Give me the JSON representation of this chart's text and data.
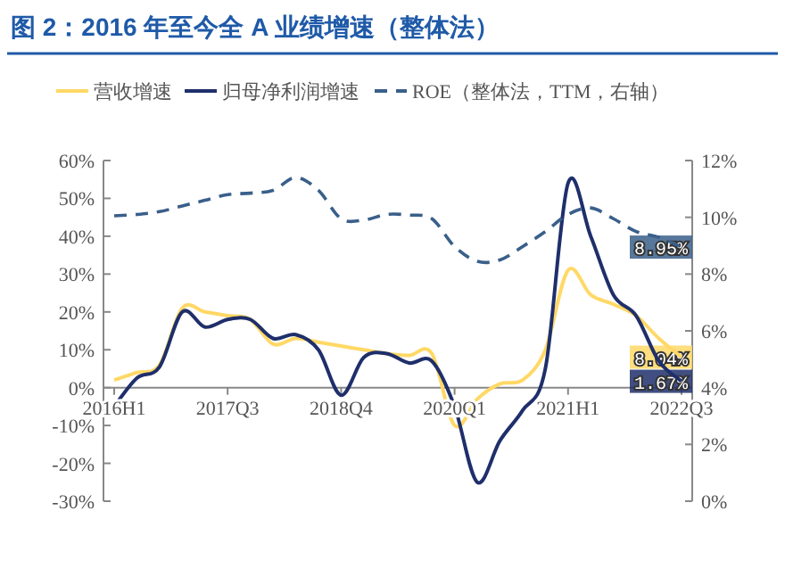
{
  "chart_data": {
    "type": "line",
    "title": "图 2：2016 年至今全 A 业绩增速（整体法）",
    "categories": [
      "2016H1",
      null,
      null,
      null,
      null,
      "2017Q3",
      null,
      null,
      null,
      null,
      "2018Q4",
      null,
      null,
      null,
      null,
      "2020Q1",
      null,
      null,
      null,
      null,
      "2021H1",
      null,
      null,
      null,
      null,
      "2022Q3"
    ],
    "series": [
      {
        "name": "营收增速",
        "color": "#ffd866",
        "values": [
          2,
          4,
          6,
          21,
          20,
          19,
          18,
          11.5,
          13,
          12,
          11,
          10,
          9,
          8.5,
          9,
          -10,
          -3,
          1,
          2,
          10,
          31,
          24.5,
          22,
          19,
          13,
          8.04
        ],
        "value_labels": [
          null,
          null,
          null,
          null,
          null,
          null,
          null,
          null,
          null,
          null,
          null,
          null,
          null,
          null,
          null,
          null,
          null,
          null,
          null,
          null,
          null,
          null,
          null,
          null,
          null,
          "8.04%"
        ]
      },
      {
        "name": "归母净利润增速",
        "color": "#1f2f6b",
        "values": [
          -5,
          2.5,
          5.5,
          20,
          16,
          18,
          18,
          13,
          14,
          10,
          -2,
          8,
          9,
          6.5,
          7,
          -5,
          -25,
          -14,
          -6,
          5,
          54,
          40,
          24.5,
          19,
          7,
          1.67
        ],
        "value_labels": [
          null,
          null,
          null,
          null,
          null,
          null,
          null,
          null,
          null,
          null,
          null,
          null,
          null,
          null,
          null,
          null,
          null,
          null,
          null,
          null,
          null,
          null,
          null,
          null,
          null,
          "1.67%"
        ]
      },
      {
        "name": "ROE（整体法，TTM，右轴）",
        "color": "#3a5f8a",
        "axis": "y2",
        "line_style": "dashed",
        "values": [
          10.05,
          10.1,
          10.2,
          10.4,
          10.6,
          10.8,
          10.85,
          10.95,
          11.4,
          10.95,
          9.95,
          9.9,
          10.1,
          10.08,
          9.95,
          8.97,
          8.45,
          8.5,
          8.97,
          9.5,
          10.1,
          10.33,
          9.95,
          9.5,
          9.3,
          8.95
        ],
        "value_labels": [
          null,
          null,
          null,
          null,
          null,
          null,
          null,
          null,
          null,
          null,
          null,
          null,
          null,
          null,
          null,
          null,
          null,
          null,
          null,
          null,
          null,
          null,
          null,
          null,
          null,
          "8.95%"
        ]
      }
    ],
    "ylim": [
      -30,
      60
    ],
    "yticks": [
      {
        "value": -30,
        "label": "-30%"
      },
      {
        "value": -20,
        "label": "-20%"
      },
      {
        "value": -10,
        "label": "-10%"
      },
      {
        "value": 0,
        "label": "0%"
      },
      {
        "value": 10,
        "label": "10%"
      },
      {
        "value": 20,
        "label": "20%"
      },
      {
        "value": 30,
        "label": "30%"
      },
      {
        "value": 40,
        "label": "40%"
      },
      {
        "value": 50,
        "label": "50%"
      },
      {
        "value": 60,
        "label": "60%"
      }
    ],
    "y2lim": [
      0,
      12
    ],
    "y2ticks": [
      {
        "value": 0,
        "label": "0%"
      },
      {
        "value": 2,
        "label": "2%"
      },
      {
        "value": 4,
        "label": "4%"
      },
      {
        "value": 6,
        "label": "6%"
      },
      {
        "value": 8,
        "label": "8%"
      },
      {
        "value": 10,
        "label": "10%"
      },
      {
        "value": 12,
        "label": "12%"
      }
    ],
    "legend": "top",
    "grid": false
  }
}
